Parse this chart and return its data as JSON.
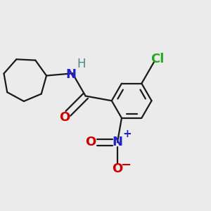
{
  "background_color": "#ebebeb",
  "bond_color": "#1a1a1a",
  "atom_colors": {
    "N_amide": "#2222cc",
    "H": "#448888",
    "O_carbonyl": "#cc0000",
    "N_nitro": "#2222cc",
    "O_nitro": "#cc0000",
    "Cl": "#22aa22"
  },
  "figsize": [
    3.0,
    3.0
  ],
  "dpi": 100,
  "xlim": [
    -2.2,
    2.2
  ],
  "ylim": [
    -2.2,
    2.2
  ]
}
